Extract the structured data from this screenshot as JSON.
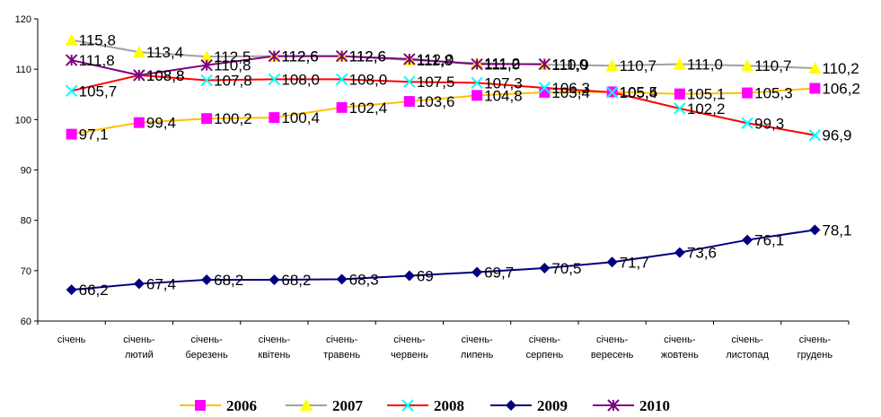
{
  "chart_data": {
    "type": "line",
    "categories": [
      [
        "січень"
      ],
      [
        "січень-",
        "лютий"
      ],
      [
        "січень-",
        "березень"
      ],
      [
        "січень-",
        "квітень"
      ],
      [
        "січень-",
        "травень"
      ],
      [
        "січень-",
        "червень"
      ],
      [
        "січень-",
        "липень"
      ],
      [
        "січень-",
        "серпень"
      ],
      [
        "січень-",
        "вересень"
      ],
      [
        "січень-",
        "жовтень"
      ],
      [
        "січень-",
        "листопад"
      ],
      [
        "січень-",
        "грудень"
      ]
    ],
    "ylim": [
      60,
      120
    ],
    "yticks": [
      "60",
      "70",
      "80",
      "90",
      "100",
      "110",
      "120"
    ],
    "grid": false,
    "legend_position": "bottom",
    "series": [
      {
        "name": "2006",
        "color": "#FFC000",
        "marker": "square",
        "marker_color": "#FF00FF",
        "values": [
          97.1,
          99.4,
          100.2,
          100.4,
          102.4,
          103.6,
          104.8,
          105.4,
          105.5,
          105.1,
          105.3,
          106.2
        ],
        "labels": [
          "97,1",
          "99,4",
          "100,2",
          "100,4",
          "102,4",
          "103,6",
          "104,8",
          "105,4",
          "105,5",
          "105,1",
          "105,3",
          "106,2"
        ]
      },
      {
        "name": "2007",
        "color": "#A0A0A0",
        "marker": "triangle",
        "marker_color": "#FFFF00",
        "values": [
          115.8,
          113.4,
          112.5,
          112.6,
          112.6,
          111.8,
          111.2,
          110.9,
          110.7,
          111.0,
          110.7,
          110.2
        ],
        "labels": [
          "115,8",
          "113,4",
          "112,5",
          "112,6",
          "112,6",
          "111,8",
          "111,2",
          "110,9",
          "110,7",
          "111,0",
          "110,7",
          "110,2"
        ]
      },
      {
        "name": "2008",
        "color": "#FF0000",
        "marker": "cross",
        "marker_color": "#00FFFF",
        "values": [
          105.7,
          108.8,
          107.8,
          108.0,
          108.0,
          107.5,
          107.3,
          106.3,
          105.4,
          102.2,
          99.3,
          96.9
        ],
        "labels": [
          "105,7",
          "108,8",
          "107,8",
          "108,0",
          "108,0",
          "107,5",
          "107,3",
          "106,3",
          "105,4",
          "102,2",
          "99,3",
          "96,9"
        ]
      },
      {
        "name": "2009",
        "color": "#000080",
        "marker": "diamond",
        "marker_color": "#000080",
        "values": [
          66.2,
          67.4,
          68.2,
          68.2,
          68.3,
          69.0,
          69.7,
          70.5,
          71.7,
          73.6,
          76.1,
          78.1
        ],
        "labels": [
          "66,2",
          "67,4",
          "68,2",
          "68,2",
          "68,3",
          "69",
          "69,7",
          "70,5",
          "71,7",
          "73,6",
          "76,1",
          "78,1"
        ]
      },
      {
        "name": "2010",
        "color": "#800080",
        "marker": "asterisk",
        "marker_color": "#800080",
        "values": [
          111.8,
          108.8,
          110.8,
          112.6,
          112.6,
          112.0,
          111.0,
          111.0,
          null,
          null,
          null,
          null
        ],
        "labels": [
          "111,8",
          "108,8",
          "110,8",
          "112,6",
          "112,6",
          "112,0",
          "111,0",
          "111,0",
          null,
          null,
          null,
          null
        ]
      }
    ]
  }
}
